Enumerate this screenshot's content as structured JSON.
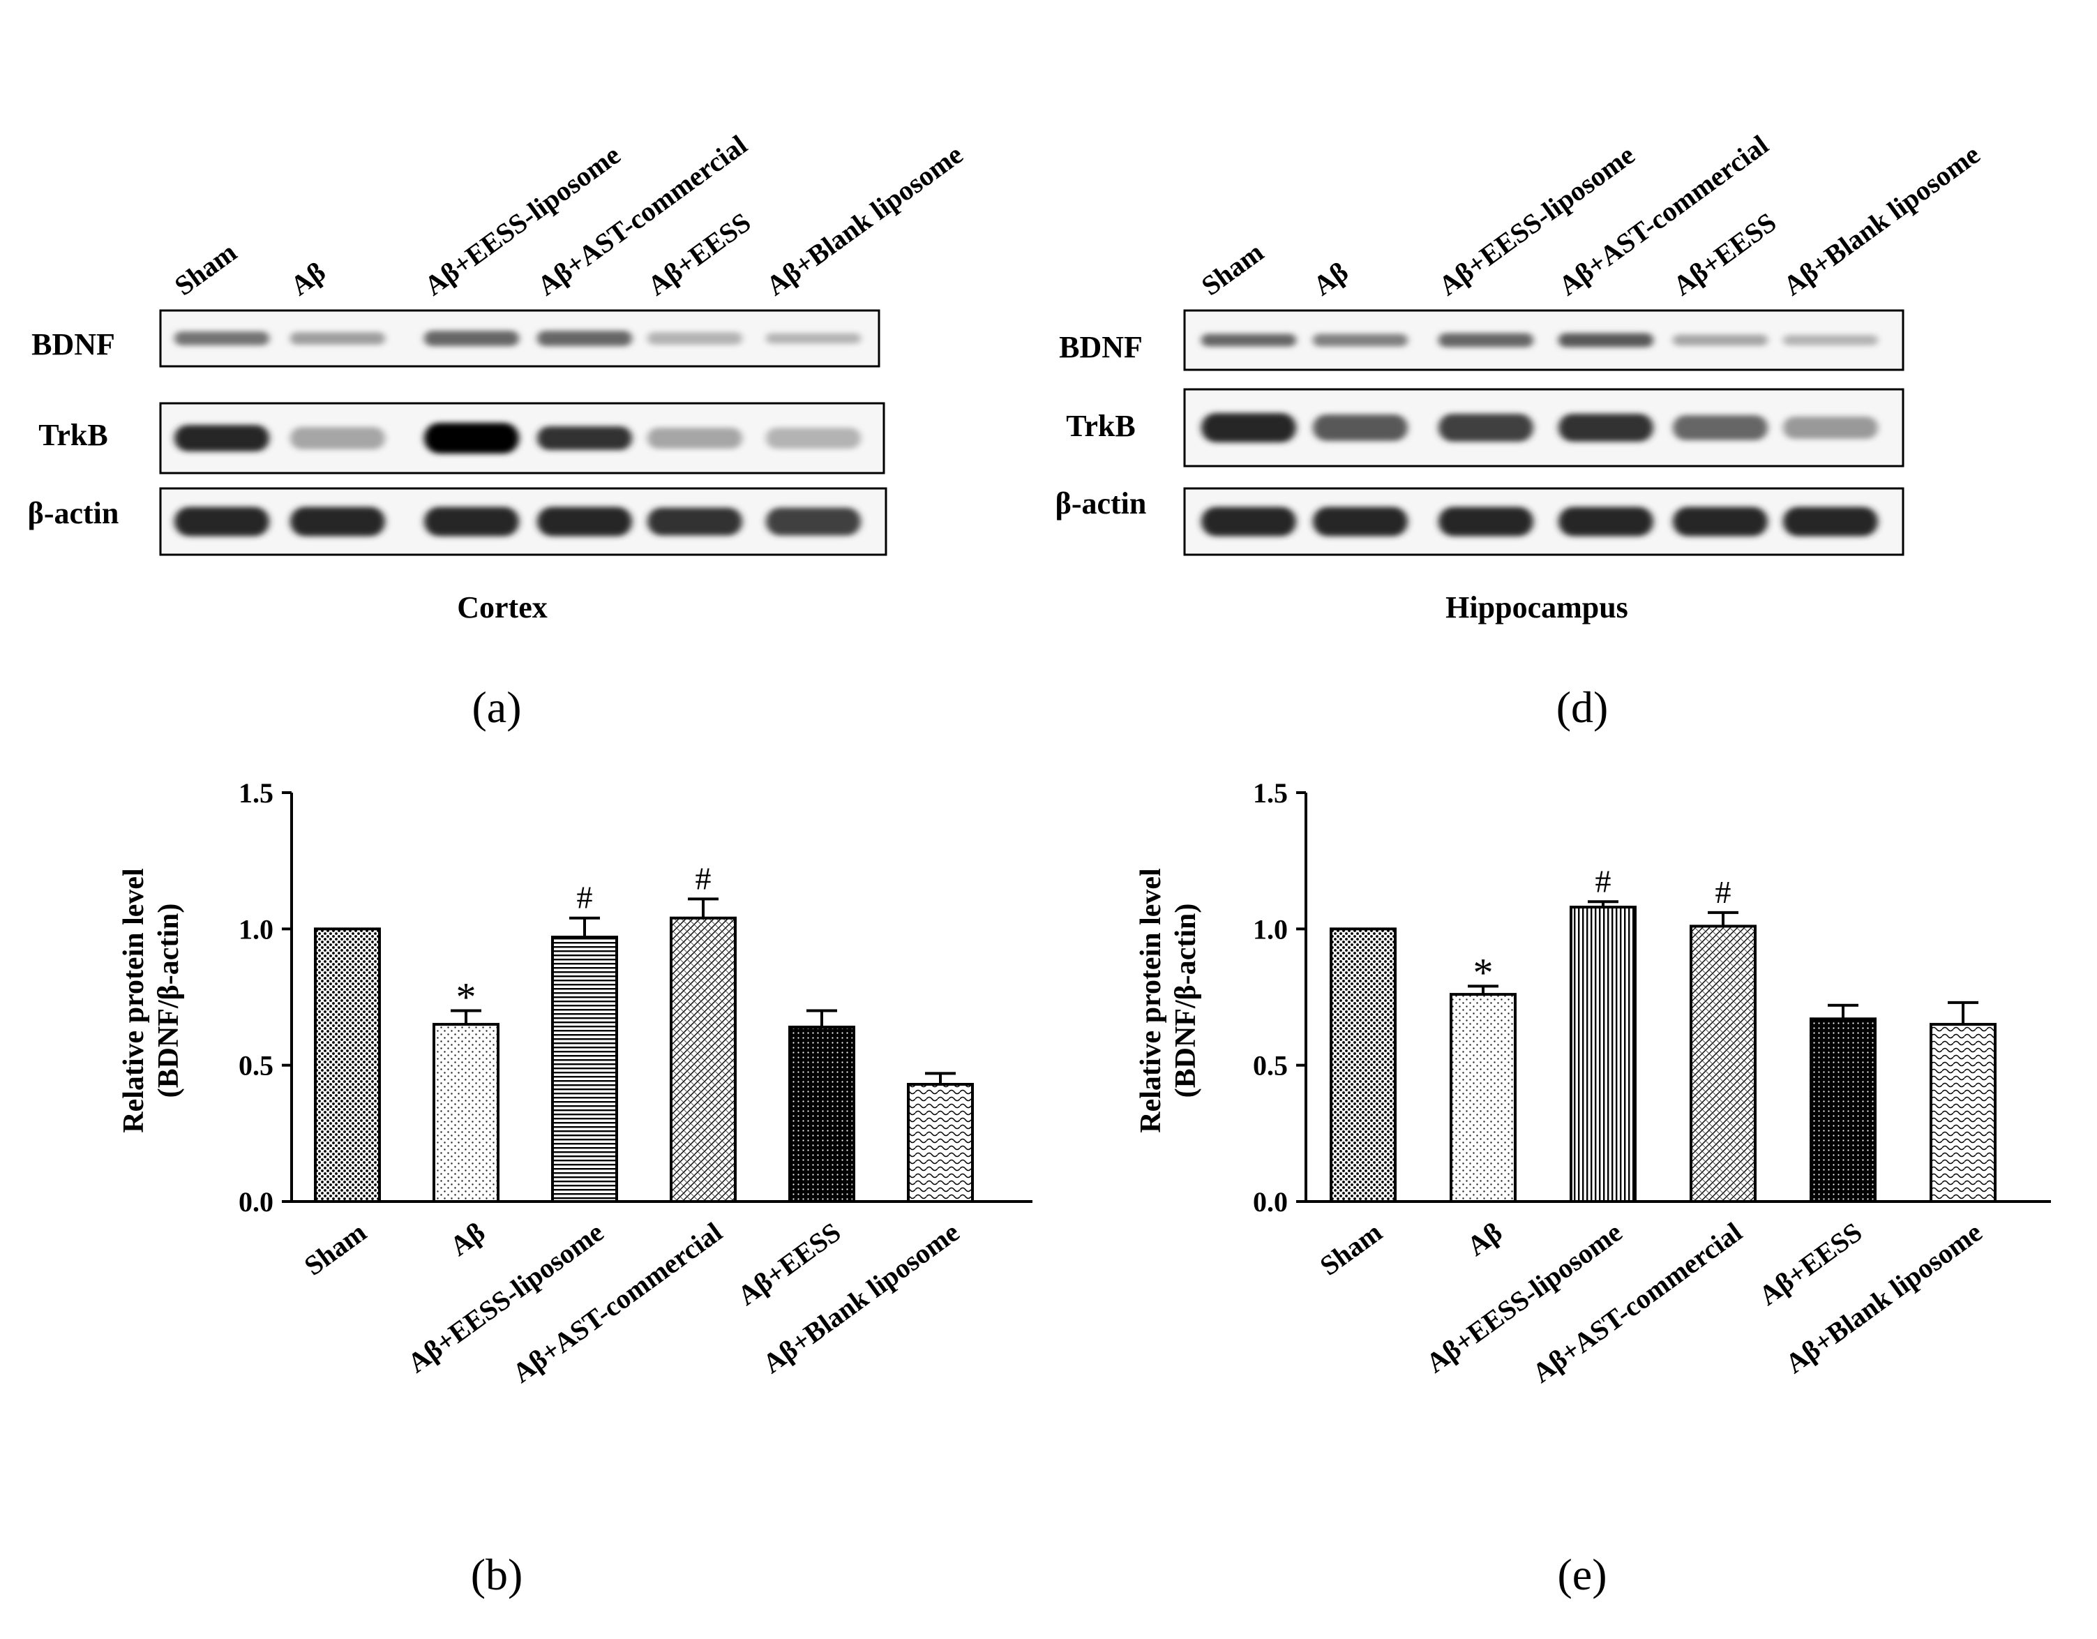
{
  "panels": {
    "a": {
      "label": "(a)",
      "lanes": [
        "Sham",
        "Aβ",
        "Aβ+EESS-liposome",
        "Aβ+AST-commercial",
        "Aβ+EESS",
        "Aβ+Blank liposome"
      ],
      "rows": [
        "BDNF",
        "TrkB",
        "β-actin"
      ],
      "title": "Cortex"
    },
    "d": {
      "label": "(d)",
      "lanes": [
        "Sham",
        "Aβ",
        "Aβ+EESS-liposome",
        "Aβ+AST-commercial",
        "Aβ+EESS",
        "Aβ+Blank liposome"
      ],
      "rows": [
        "BDNF",
        "TrkB",
        "β-actin"
      ],
      "title": "Hippocampus"
    },
    "b": {
      "label": "(b)"
    },
    "e": {
      "label": "(e)"
    }
  },
  "chart_data": [
    {
      "panel": "b",
      "type": "bar",
      "categories": [
        "Sham",
        "Aβ",
        "Aβ+EESS-liposome",
        "Aβ+AST-commercial",
        "Aβ+EESS",
        "Aβ+Blank liposome"
      ],
      "values": [
        1.0,
        0.65,
        0.97,
        1.04,
        0.64,
        0.43
      ],
      "errors": [
        0.0,
        0.05,
        0.07,
        0.07,
        0.06,
        0.04
      ],
      "annotations": [
        "",
        "*",
        "#",
        "#",
        "",
        ""
      ],
      "ylabel": [
        "Relative protein level",
        "(BDNF/β-actin)"
      ],
      "ylim": [
        0,
        1.5
      ],
      "yticks": [
        "0.0",
        "0.5",
        "1.0",
        "1.5"
      ],
      "patterns": [
        "dots-dense",
        "dots-sparse",
        "hlines",
        "hatch-cross",
        "dots-dark",
        "waves"
      ]
    },
    {
      "panel": "e",
      "type": "bar",
      "categories": [
        "Sham",
        "Aβ",
        "Aβ+EESS-liposome",
        "Aβ+AST-commercial",
        "Aβ+EESS",
        "Aβ+Blank liposome"
      ],
      "values": [
        1.0,
        0.76,
        1.08,
        1.01,
        0.67,
        0.65
      ],
      "errors": [
        0.0,
        0.03,
        0.02,
        0.05,
        0.05,
        0.08
      ],
      "annotations": [
        "",
        "*",
        "#",
        "#",
        "",
        ""
      ],
      "ylabel": [
        "Relative protein level",
        "(BDNF/β-actin)"
      ],
      "ylim": [
        0,
        1.5
      ],
      "yticks": [
        "0.0",
        "0.5",
        "1.0",
        "1.5"
      ],
      "patterns": [
        "dots-dense",
        "dots-sparse",
        "vlines",
        "hatch-cross",
        "dots-dark",
        "waves"
      ]
    }
  ]
}
